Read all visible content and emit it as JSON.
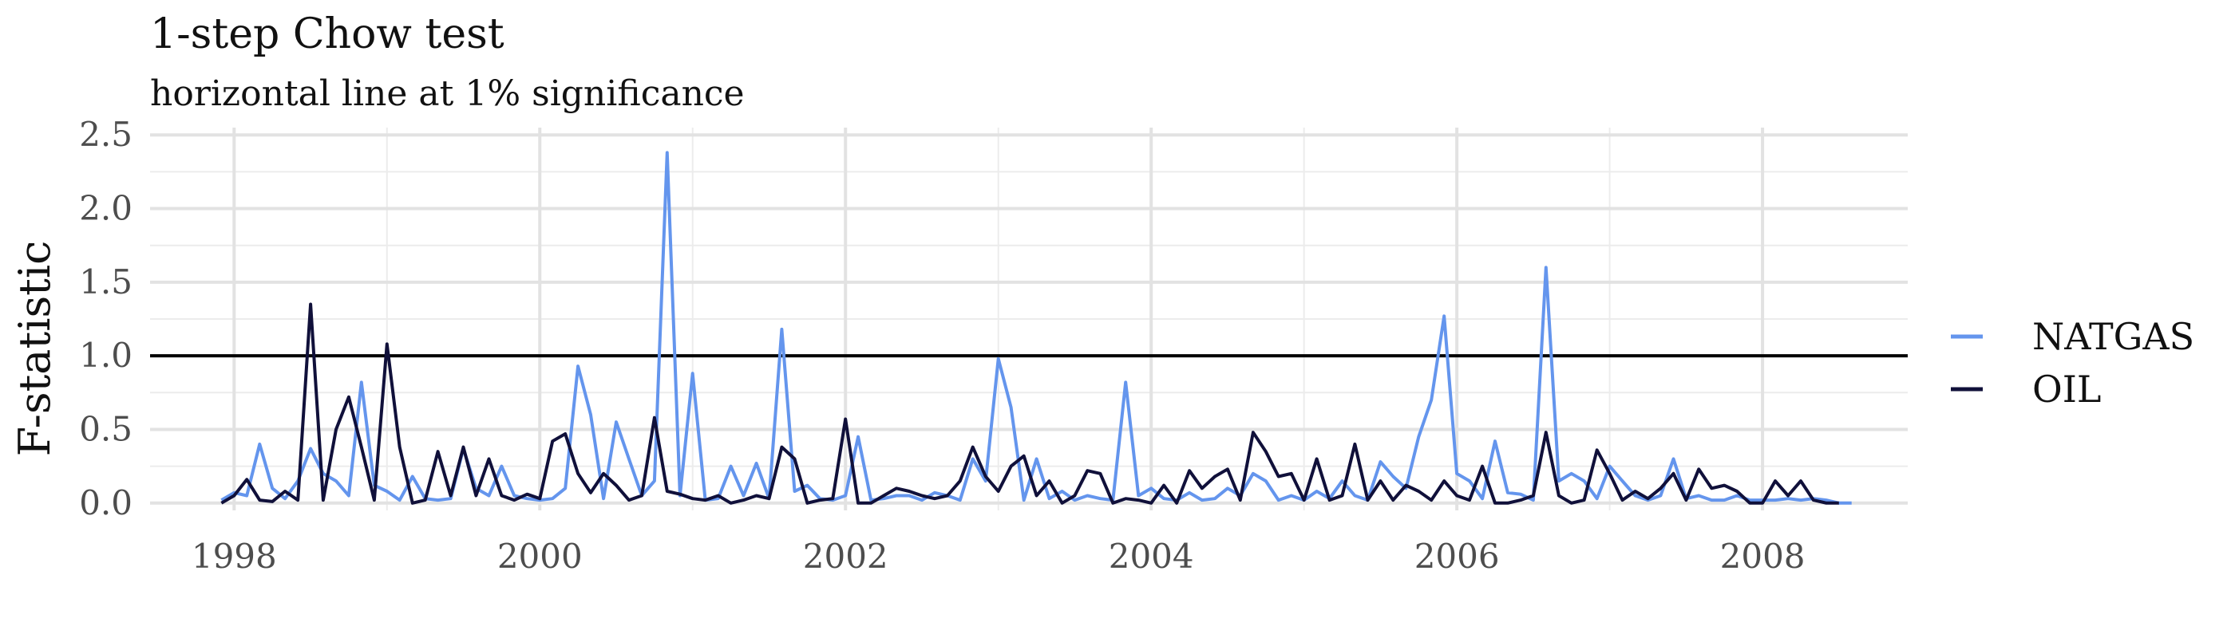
{
  "chart_data": {
    "type": "line",
    "title": "1-step Chow test",
    "subtitle": "horizontal line at 1% significance",
    "xlabel": "",
    "ylabel": "F-statistic",
    "xlim": [
      1997.45,
      2008.95
    ],
    "ylim": [
      -0.05,
      2.55
    ],
    "x_ticks": [
      1998,
      2000,
      2002,
      2004,
      2006,
      2008
    ],
    "x_tick_labels": [
      "1998",
      "2000",
      "2002",
      "2004",
      "2006",
      "2008"
    ],
    "y_ticks": [
      0.0,
      0.5,
      1.0,
      1.5,
      2.0,
      2.5
    ],
    "y_tick_labels": [
      "0.0",
      "0.5",
      "1.0",
      "1.5",
      "2.0",
      "2.5"
    ],
    "reference_line": {
      "y": 1.0,
      "color": "#000000"
    },
    "grid": true,
    "legend": {
      "position": "right"
    },
    "series": [
      {
        "name": "NATGAS",
        "color": "#6495ED",
        "values": [
          [
            1997.917,
            0.02
          ],
          [
            1998.0,
            0.07
          ],
          [
            1998.083,
            0.05
          ],
          [
            1998.167,
            0.4
          ],
          [
            1998.25,
            0.1
          ],
          [
            1998.333,
            0.03
          ],
          [
            1998.417,
            0.15
          ],
          [
            1998.5,
            0.37
          ],
          [
            1998.583,
            0.2
          ],
          [
            1998.667,
            0.15
          ],
          [
            1998.75,
            0.05
          ],
          [
            1998.833,
            0.82
          ],
          [
            1998.917,
            0.12
          ],
          [
            1999.0,
            0.08
          ],
          [
            1999.083,
            0.02
          ],
          [
            1999.167,
            0.18
          ],
          [
            1999.25,
            0.03
          ],
          [
            1999.333,
            0.02
          ],
          [
            1999.417,
            0.03
          ],
          [
            1999.5,
            0.37
          ],
          [
            1999.583,
            0.1
          ],
          [
            1999.667,
            0.05
          ],
          [
            1999.75,
            0.25
          ],
          [
            1999.833,
            0.05
          ],
          [
            1999.917,
            0.03
          ],
          [
            2000.0,
            0.02
          ],
          [
            2000.083,
            0.03
          ],
          [
            2000.167,
            0.1
          ],
          [
            2000.25,
            0.93
          ],
          [
            2000.333,
            0.6
          ],
          [
            2000.417,
            0.03
          ],
          [
            2000.5,
            0.55
          ],
          [
            2000.583,
            0.3
          ],
          [
            2000.667,
            0.05
          ],
          [
            2000.75,
            0.15
          ],
          [
            2000.833,
            2.38
          ],
          [
            2000.917,
            0.05
          ],
          [
            2001.0,
            0.88
          ],
          [
            2001.083,
            0.02
          ],
          [
            2001.167,
            0.03
          ],
          [
            2001.25,
            0.25
          ],
          [
            2001.333,
            0.05
          ],
          [
            2001.417,
            0.27
          ],
          [
            2001.5,
            0.03
          ],
          [
            2001.583,
            1.18
          ],
          [
            2001.667,
            0.08
          ],
          [
            2001.75,
            0.12
          ],
          [
            2001.833,
            0.03
          ],
          [
            2001.917,
            0.02
          ],
          [
            2002.0,
            0.05
          ],
          [
            2002.083,
            0.45
          ],
          [
            2002.167,
            0.02
          ],
          [
            2002.25,
            0.03
          ],
          [
            2002.333,
            0.05
          ],
          [
            2002.417,
            0.05
          ],
          [
            2002.5,
            0.02
          ],
          [
            2002.583,
            0.07
          ],
          [
            2002.667,
            0.05
          ],
          [
            2002.75,
            0.02
          ],
          [
            2002.833,
            0.3
          ],
          [
            2002.917,
            0.15
          ],
          [
            2003.0,
            0.98
          ],
          [
            2003.083,
            0.65
          ],
          [
            2003.167,
            0.02
          ],
          [
            2003.25,
            0.3
          ],
          [
            2003.333,
            0.03
          ],
          [
            2003.417,
            0.08
          ],
          [
            2003.5,
            0.02
          ],
          [
            2003.583,
            0.05
          ],
          [
            2003.667,
            0.03
          ],
          [
            2003.75,
            0.02
          ],
          [
            2003.833,
            0.82
          ],
          [
            2003.917,
            0.05
          ],
          [
            2004.0,
            0.1
          ],
          [
            2004.083,
            0.03
          ],
          [
            2004.167,
            0.02
          ],
          [
            2004.25,
            0.07
          ],
          [
            2004.333,
            0.02
          ],
          [
            2004.417,
            0.03
          ],
          [
            2004.5,
            0.1
          ],
          [
            2004.583,
            0.05
          ],
          [
            2004.667,
            0.2
          ],
          [
            2004.75,
            0.15
          ],
          [
            2004.833,
            0.02
          ],
          [
            2004.917,
            0.05
          ],
          [
            2005.0,
            0.02
          ],
          [
            2005.083,
            0.08
          ],
          [
            2005.167,
            0.03
          ],
          [
            2005.25,
            0.15
          ],
          [
            2005.333,
            0.05
          ],
          [
            2005.417,
            0.02
          ],
          [
            2005.5,
            0.28
          ],
          [
            2005.583,
            0.18
          ],
          [
            2005.667,
            0.1
          ],
          [
            2005.75,
            0.45
          ],
          [
            2005.833,
            0.7
          ],
          [
            2005.917,
            1.27
          ],
          [
            2006.0,
            0.2
          ],
          [
            2006.083,
            0.15
          ],
          [
            2006.167,
            0.03
          ],
          [
            2006.25,
            0.42
          ],
          [
            2006.333,
            0.07
          ],
          [
            2006.417,
            0.06
          ],
          [
            2006.5,
            0.02
          ],
          [
            2006.583,
            1.6
          ],
          [
            2006.667,
            0.15
          ],
          [
            2006.75,
            0.2
          ],
          [
            2006.833,
            0.15
          ],
          [
            2006.917,
            0.03
          ],
          [
            2007.0,
            0.25
          ],
          [
            2007.083,
            0.15
          ],
          [
            2007.167,
            0.05
          ],
          [
            2007.25,
            0.02
          ],
          [
            2007.333,
            0.05
          ],
          [
            2007.417,
            0.3
          ],
          [
            2007.5,
            0.03
          ],
          [
            2007.583,
            0.05
          ],
          [
            2007.667,
            0.02
          ],
          [
            2007.75,
            0.02
          ],
          [
            2007.833,
            0.05
          ],
          [
            2007.917,
            0.02
          ],
          [
            2008.0,
            0.02
          ],
          [
            2008.083,
            0.02
          ],
          [
            2008.167,
            0.03
          ],
          [
            2008.25,
            0.02
          ],
          [
            2008.333,
            0.03
          ],
          [
            2008.417,
            0.02
          ],
          [
            2008.5,
            0.0
          ],
          [
            2008.583,
            0.0
          ]
        ]
      },
      {
        "name": "OIL",
        "color": "#10103A",
        "values": [
          [
            1997.917,
            0.0
          ],
          [
            1998.0,
            0.05
          ],
          [
            1998.083,
            0.16
          ],
          [
            1998.167,
            0.02
          ],
          [
            1998.25,
            0.01
          ],
          [
            1998.333,
            0.08
          ],
          [
            1998.417,
            0.02
          ],
          [
            1998.5,
            1.35
          ],
          [
            1998.583,
            0.02
          ],
          [
            1998.667,
            0.5
          ],
          [
            1998.75,
            0.72
          ],
          [
            1998.833,
            0.38
          ],
          [
            1998.917,
            0.02
          ],
          [
            1999.0,
            1.08
          ],
          [
            1999.083,
            0.38
          ],
          [
            1999.167,
            0.0
          ],
          [
            1999.25,
            0.02
          ],
          [
            1999.333,
            0.35
          ],
          [
            1999.417,
            0.05
          ],
          [
            1999.5,
            0.38
          ],
          [
            1999.583,
            0.05
          ],
          [
            1999.667,
            0.3
          ],
          [
            1999.75,
            0.05
          ],
          [
            1999.833,
            0.02
          ],
          [
            1999.917,
            0.06
          ],
          [
            2000.0,
            0.03
          ],
          [
            2000.083,
            0.42
          ],
          [
            2000.167,
            0.47
          ],
          [
            2000.25,
            0.2
          ],
          [
            2000.333,
            0.07
          ],
          [
            2000.417,
            0.2
          ],
          [
            2000.5,
            0.12
          ],
          [
            2000.583,
            0.02
          ],
          [
            2000.667,
            0.05
          ],
          [
            2000.75,
            0.58
          ],
          [
            2000.833,
            0.08
          ],
          [
            2000.917,
            0.06
          ],
          [
            2001.0,
            0.03
          ],
          [
            2001.083,
            0.02
          ],
          [
            2001.167,
            0.05
          ],
          [
            2001.25,
            0.0
          ],
          [
            2001.333,
            0.02
          ],
          [
            2001.417,
            0.05
          ],
          [
            2001.5,
            0.03
          ],
          [
            2001.583,
            0.38
          ],
          [
            2001.667,
            0.3
          ],
          [
            2001.75,
            0.0
          ],
          [
            2001.833,
            0.02
          ],
          [
            2001.917,
            0.03
          ],
          [
            2002.0,
            0.57
          ],
          [
            2002.083,
            0.0
          ],
          [
            2002.167,
            0.0
          ],
          [
            2002.25,
            0.05
          ],
          [
            2002.333,
            0.1
          ],
          [
            2002.417,
            0.08
          ],
          [
            2002.5,
            0.05
          ],
          [
            2002.583,
            0.03
          ],
          [
            2002.667,
            0.05
          ],
          [
            2002.75,
            0.15
          ],
          [
            2002.833,
            0.38
          ],
          [
            2002.917,
            0.18
          ],
          [
            2003.0,
            0.08
          ],
          [
            2003.083,
            0.25
          ],
          [
            2003.167,
            0.32
          ],
          [
            2003.25,
            0.05
          ],
          [
            2003.333,
            0.15
          ],
          [
            2003.417,
            0.0
          ],
          [
            2003.5,
            0.05
          ],
          [
            2003.583,
            0.22
          ],
          [
            2003.667,
            0.2
          ],
          [
            2003.75,
            0.0
          ],
          [
            2003.833,
            0.03
          ],
          [
            2003.917,
            0.02
          ],
          [
            2004.0,
            0.0
          ],
          [
            2004.083,
            0.12
          ],
          [
            2004.167,
            0.0
          ],
          [
            2004.25,
            0.22
          ],
          [
            2004.333,
            0.1
          ],
          [
            2004.417,
            0.18
          ],
          [
            2004.5,
            0.23
          ],
          [
            2004.583,
            0.02
          ],
          [
            2004.667,
            0.48
          ],
          [
            2004.75,
            0.35
          ],
          [
            2004.833,
            0.18
          ],
          [
            2004.917,
            0.2
          ],
          [
            2005.0,
            0.02
          ],
          [
            2005.083,
            0.3
          ],
          [
            2005.167,
            0.02
          ],
          [
            2005.25,
            0.05
          ],
          [
            2005.333,
            0.4
          ],
          [
            2005.417,
            0.02
          ],
          [
            2005.5,
            0.15
          ],
          [
            2005.583,
            0.02
          ],
          [
            2005.667,
            0.12
          ],
          [
            2005.75,
            0.08
          ],
          [
            2005.833,
            0.02
          ],
          [
            2005.917,
            0.15
          ],
          [
            2006.0,
            0.05
          ],
          [
            2006.083,
            0.02
          ],
          [
            2006.167,
            0.25
          ],
          [
            2006.25,
            0.0
          ],
          [
            2006.333,
            0.0
          ],
          [
            2006.417,
            0.02
          ],
          [
            2006.5,
            0.05
          ],
          [
            2006.583,
            0.48
          ],
          [
            2006.667,
            0.05
          ],
          [
            2006.75,
            0.0
          ],
          [
            2006.833,
            0.02
          ],
          [
            2006.917,
            0.36
          ],
          [
            2007.0,
            0.2
          ],
          [
            2007.083,
            0.02
          ],
          [
            2007.167,
            0.08
          ],
          [
            2007.25,
            0.03
          ],
          [
            2007.333,
            0.1
          ],
          [
            2007.417,
            0.2
          ],
          [
            2007.5,
            0.02
          ],
          [
            2007.583,
            0.23
          ],
          [
            2007.667,
            0.1
          ],
          [
            2007.75,
            0.12
          ],
          [
            2007.833,
            0.08
          ],
          [
            2007.917,
            0.0
          ],
          [
            2008.0,
            0.0
          ],
          [
            2008.083,
            0.15
          ],
          [
            2008.167,
            0.05
          ],
          [
            2008.25,
            0.15
          ],
          [
            2008.333,
            0.02
          ],
          [
            2008.417,
            0.0
          ],
          [
            2008.5,
            0.0
          ]
        ]
      }
    ]
  }
}
